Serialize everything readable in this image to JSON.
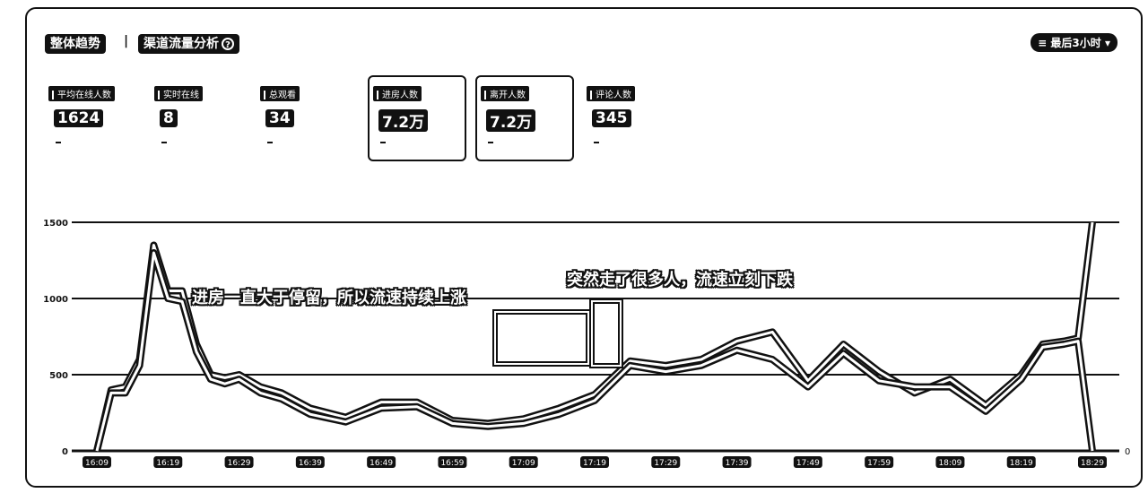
{
  "header": {
    "tab_overall": "整体趋势",
    "separator": "|",
    "tab_channel": "渠道流量分析",
    "info_icon": "info-circle-icon",
    "time_range": "最后3小时"
  },
  "metrics": [
    {
      "label": "平均在线人数",
      "value": "1624",
      "highlighted": false
    },
    {
      "label": "实时在线",
      "value": "8",
      "highlighted": false
    },
    {
      "label": "总观看",
      "value": "34",
      "highlighted": false
    },
    {
      "label": "进房人数",
      "value": "7.2万",
      "highlighted": true
    },
    {
      "label": "离开人数",
      "value": "7.2万",
      "highlighted": true
    },
    {
      "label": "评论人数",
      "value": "345",
      "highlighted": false
    }
  ],
  "annotations": {
    "left": "进房一直大于停留，所以流速持续上涨",
    "right": "突然走了很多人，流速立刻下跌"
  },
  "chart_data": {
    "type": "line",
    "title": "",
    "xlabel": "",
    "ylabel": "",
    "ylim": [
      0,
      1500
    ],
    "yticks": [
      0,
      500,
      1000,
      1500
    ],
    "ytick_labels": [
      "0",
      "500",
      "1000",
      "1500"
    ],
    "x_ticks": [
      "16:09",
      "16:19",
      "16:29",
      "16:39",
      "16:49",
      "16:59",
      "17:09",
      "17:19",
      "17:29",
      "17:39",
      "17:49",
      "17:59",
      "18:09",
      "18:19",
      "18:29"
    ],
    "right_axis_label": "0",
    "series": [
      {
        "name": "进房人数",
        "x": [
          0,
          0.2,
          0.4,
          0.6,
          0.8,
          1,
          1.2,
          1.4,
          1.6,
          1.8,
          2,
          2.3,
          2.6,
          3,
          3.5,
          4,
          4.5,
          5,
          5.5,
          6,
          6.5,
          7,
          7.5,
          8,
          8.5,
          9,
          9.5,
          10,
          10.5,
          11,
          11.5,
          12,
          12.5,
          13,
          13.3,
          13.6,
          13.8,
          14
        ],
        "values": [
          0,
          400,
          420,
          600,
          1350,
          1050,
          1050,
          700,
          500,
          480,
          500,
          420,
          380,
          280,
          220,
          320,
          320,
          200,
          180,
          210,
          280,
          370,
          590,
          560,
          600,
          720,
          780,
          460,
          700,
          520,
          380,
          470,
          300,
          500,
          700,
          720,
          740,
          1500
        ]
      },
      {
        "name": "离开人数",
        "x": [
          0,
          0.2,
          0.4,
          0.6,
          0.8,
          1,
          1.2,
          1.4,
          1.6,
          1.8,
          2,
          2.3,
          2.6,
          3,
          3.5,
          4,
          4.5,
          5,
          5.5,
          6,
          6.5,
          7,
          7.5,
          8,
          8.5,
          9,
          9.5,
          10,
          10.5,
          11,
          11.5,
          12,
          12.5,
          13,
          13.3,
          13.6,
          13.8,
          14
        ],
        "values": [
          0,
          380,
          380,
          560,
          1300,
          1000,
          980,
          650,
          470,
          440,
          470,
          380,
          340,
          240,
          190,
          280,
          290,
          180,
          160,
          180,
          240,
          330,
          560,
          520,
          560,
          660,
          600,
          420,
          640,
          460,
          420,
          420,
          260,
          470,
          680,
          700,
          720,
          0
        ]
      }
    ]
  }
}
